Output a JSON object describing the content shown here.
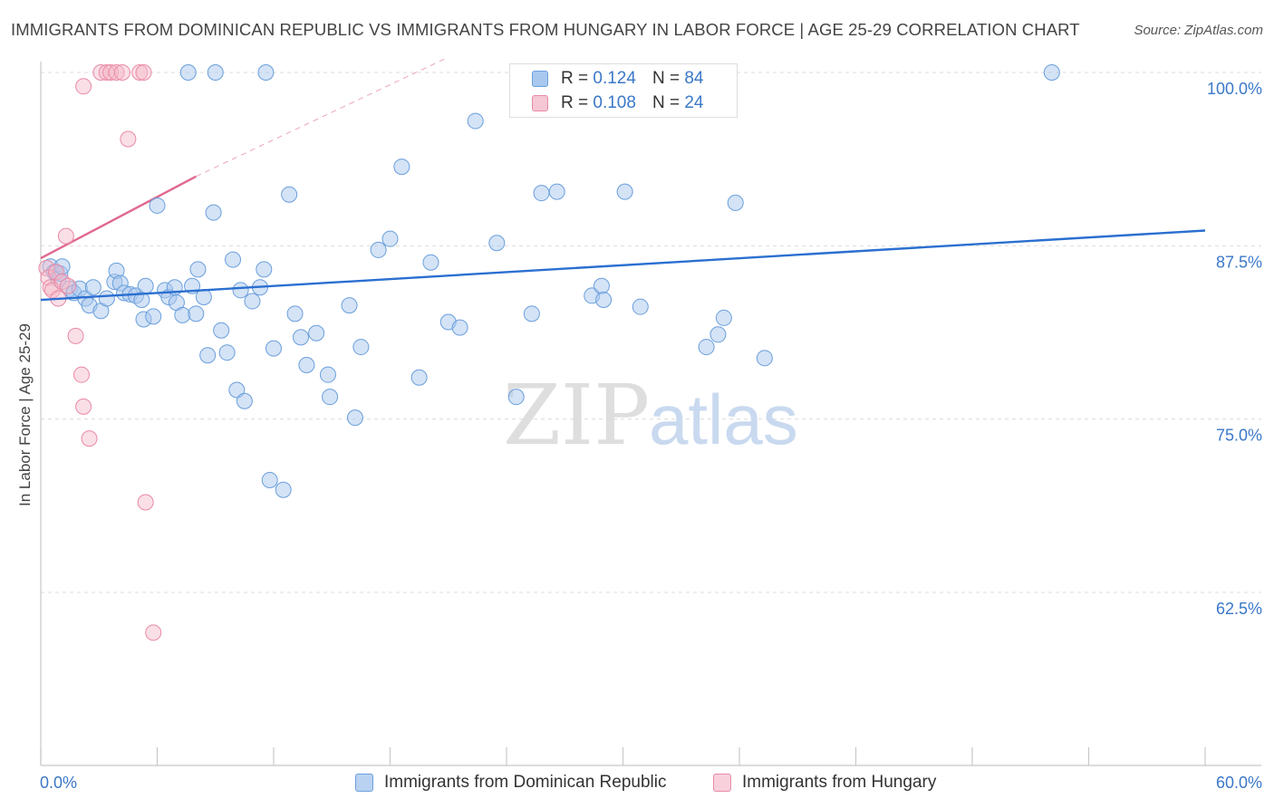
{
  "title": "IMMIGRANTS FROM DOMINICAN REPUBLIC VS IMMIGRANTS FROM HUNGARY IN LABOR FORCE | AGE 25-29 CORRELATION CHART",
  "source": "Source: ZipAtlas.com",
  "watermark": {
    "zip": "ZIP",
    "atlas": "atlas"
  },
  "legend_top": {
    "rows": [
      {
        "r_label": "R =",
        "r_value": "0.124",
        "n_label": "N =",
        "n_value": "84"
      },
      {
        "r_label": "R =",
        "r_value": "0.108",
        "n_label": "N =",
        "n_value": "24"
      }
    ]
  },
  "legend_bottom": [
    {
      "label": "Immigrants from Dominican Republic"
    },
    {
      "label": "Immigrants from Hungary"
    }
  ],
  "colors": {
    "blue_fill": "#a9c8ee",
    "blue_stroke": "#6a9fdc",
    "blue_line": "#2b6fd0",
    "pink_fill": "#f5b8c8",
    "pink_stroke": "#e98aa6",
    "pink_line": "#e0688f",
    "tick_label": "#3b78c8",
    "grid": "#dcdcdc",
    "axis": "#c8c8c8"
  },
  "chart_data": {
    "type": "scatter",
    "title": "IMMIGRANTS FROM DOMINICAN REPUBLIC VS IMMIGRANTS FROM HUNGARY IN LABOR FORCE | AGE 25-29 CORRELATION CHART",
    "xlabel": "",
    "ylabel": "In Labor Force | Age 25-29",
    "xlim": [
      0,
      60
    ],
    "ylim": [
      50,
      101
    ],
    "x_tick_labels": [
      {
        "value": 0,
        "label": "0.0%"
      },
      {
        "value": 60,
        "label": "60.0%"
      }
    ],
    "x_minor_ticks": [
      0,
      6,
      12,
      18,
      24,
      30,
      36,
      42,
      48,
      54,
      60
    ],
    "y_ticks": [
      {
        "value": 100,
        "label": "100.0%"
      },
      {
        "value": 87.5,
        "label": "87.5%"
      },
      {
        "value": 75,
        "label": "75.0%"
      },
      {
        "value": 62.5,
        "label": "62.5%"
      }
    ],
    "series": [
      {
        "name": "Immigrants from Dominican Republic",
        "color": "blue",
        "R": 0.124,
        "N": 84,
        "trend": {
          "x": [
            0,
            60
          ],
          "y": [
            83.6,
            88.6
          ]
        },
        "points": [
          [
            0.5,
            86.0
          ],
          [
            0.7,
            85.6
          ],
          [
            0.9,
            85.1
          ],
          [
            1.0,
            85.5
          ],
          [
            1.1,
            86.0
          ],
          [
            1.5,
            84.4
          ],
          [
            1.7,
            84.1
          ],
          [
            2.0,
            84.4
          ],
          [
            2.3,
            83.7
          ],
          [
            2.5,
            83.2
          ],
          [
            2.7,
            84.5
          ],
          [
            3.1,
            82.8
          ],
          [
            3.4,
            83.7
          ],
          [
            3.8,
            84.9
          ],
          [
            3.9,
            85.7
          ],
          [
            4.1,
            84.8
          ],
          [
            4.3,
            84.1
          ],
          [
            4.6,
            84.0
          ],
          [
            4.9,
            83.9
          ],
          [
            5.2,
            83.6
          ],
          [
            5.4,
            84.6
          ],
          [
            5.3,
            82.2
          ],
          [
            5.8,
            82.4
          ],
          [
            6.0,
            90.4
          ],
          [
            6.4,
            84.3
          ],
          [
            6.6,
            83.8
          ],
          [
            6.9,
            84.5
          ],
          [
            7.0,
            83.4
          ],
          [
            7.3,
            82.5
          ],
          [
            7.8,
            84.6
          ],
          [
            8.0,
            82.6
          ],
          [
            8.1,
            85.8
          ],
          [
            8.4,
            83.8
          ],
          [
            8.6,
            79.6
          ],
          [
            8.9,
            89.9
          ],
          [
            9.3,
            81.4
          ],
          [
            9.6,
            79.8
          ],
          [
            9.9,
            86.5
          ],
          [
            10.1,
            77.1
          ],
          [
            10.3,
            84.3
          ],
          [
            10.5,
            76.3
          ],
          [
            10.9,
            83.5
          ],
          [
            11.3,
            84.5
          ],
          [
            11.5,
            85.8
          ],
          [
            11.6,
            100.0
          ],
          [
            11.8,
            70.6
          ],
          [
            12.0,
            80.1
          ],
          [
            12.5,
            69.9
          ],
          [
            12.8,
            91.2
          ],
          [
            13.1,
            82.6
          ],
          [
            13.4,
            80.9
          ],
          [
            13.7,
            78.9
          ],
          [
            14.2,
            81.2
          ],
          [
            14.8,
            78.2
          ],
          [
            14.9,
            76.6
          ],
          [
            15.9,
            83.2
          ],
          [
            16.2,
            75.1
          ],
          [
            16.5,
            80.2
          ],
          [
            17.4,
            87.2
          ],
          [
            18.0,
            88.0
          ],
          [
            18.6,
            93.2
          ],
          [
            19.5,
            78.0
          ],
          [
            20.1,
            86.3
          ],
          [
            21.0,
            82.0
          ],
          [
            21.6,
            81.6
          ],
          [
            22.4,
            96.5
          ],
          [
            23.5,
            87.7
          ],
          [
            24.5,
            76.6
          ],
          [
            25.3,
            82.6
          ],
          [
            25.8,
            91.3
          ],
          [
            26.6,
            91.4
          ],
          [
            28.4,
            83.9
          ],
          [
            28.9,
            84.6
          ],
          [
            29.0,
            83.6
          ],
          [
            30.1,
            91.4
          ],
          [
            30.9,
            83.1
          ],
          [
            34.3,
            80.2
          ],
          [
            34.9,
            81.1
          ],
          [
            35.2,
            82.3
          ],
          [
            35.8,
            90.6
          ],
          [
            37.3,
            79.4
          ],
          [
            7.6,
            100.0
          ],
          [
            9.0,
            100.0
          ],
          [
            52.1,
            100.0
          ]
        ]
      },
      {
        "name": "Immigrants from Hungary",
        "color": "pink",
        "R": 0.108,
        "N": 24,
        "trend": {
          "x": [
            0,
            8
          ],
          "y": [
            86.6,
            92.5
          ]
        },
        "trend_extension": {
          "x": [
            8,
            21
          ],
          "y": [
            92.5,
            101.1
          ]
        },
        "points": [
          [
            0.3,
            85.9
          ],
          [
            0.4,
            85.2
          ],
          [
            0.5,
            84.5
          ],
          [
            0.6,
            84.3
          ],
          [
            0.8,
            85.6
          ],
          [
            0.9,
            83.7
          ],
          [
            1.1,
            84.9
          ],
          [
            1.3,
            88.2
          ],
          [
            1.4,
            84.6
          ],
          [
            1.8,
            81.0
          ],
          [
            2.1,
            78.2
          ],
          [
            2.2,
            75.9
          ],
          [
            2.5,
            73.6
          ],
          [
            2.2,
            99.0
          ],
          [
            3.1,
            100.0
          ],
          [
            3.4,
            100.0
          ],
          [
            3.6,
            100.0
          ],
          [
            3.9,
            100.0
          ],
          [
            4.2,
            100.0
          ],
          [
            5.1,
            100.0
          ],
          [
            4.5,
            95.2
          ],
          [
            5.3,
            100.0
          ],
          [
            5.4,
            69.0
          ],
          [
            5.8,
            59.6
          ]
        ]
      }
    ]
  }
}
